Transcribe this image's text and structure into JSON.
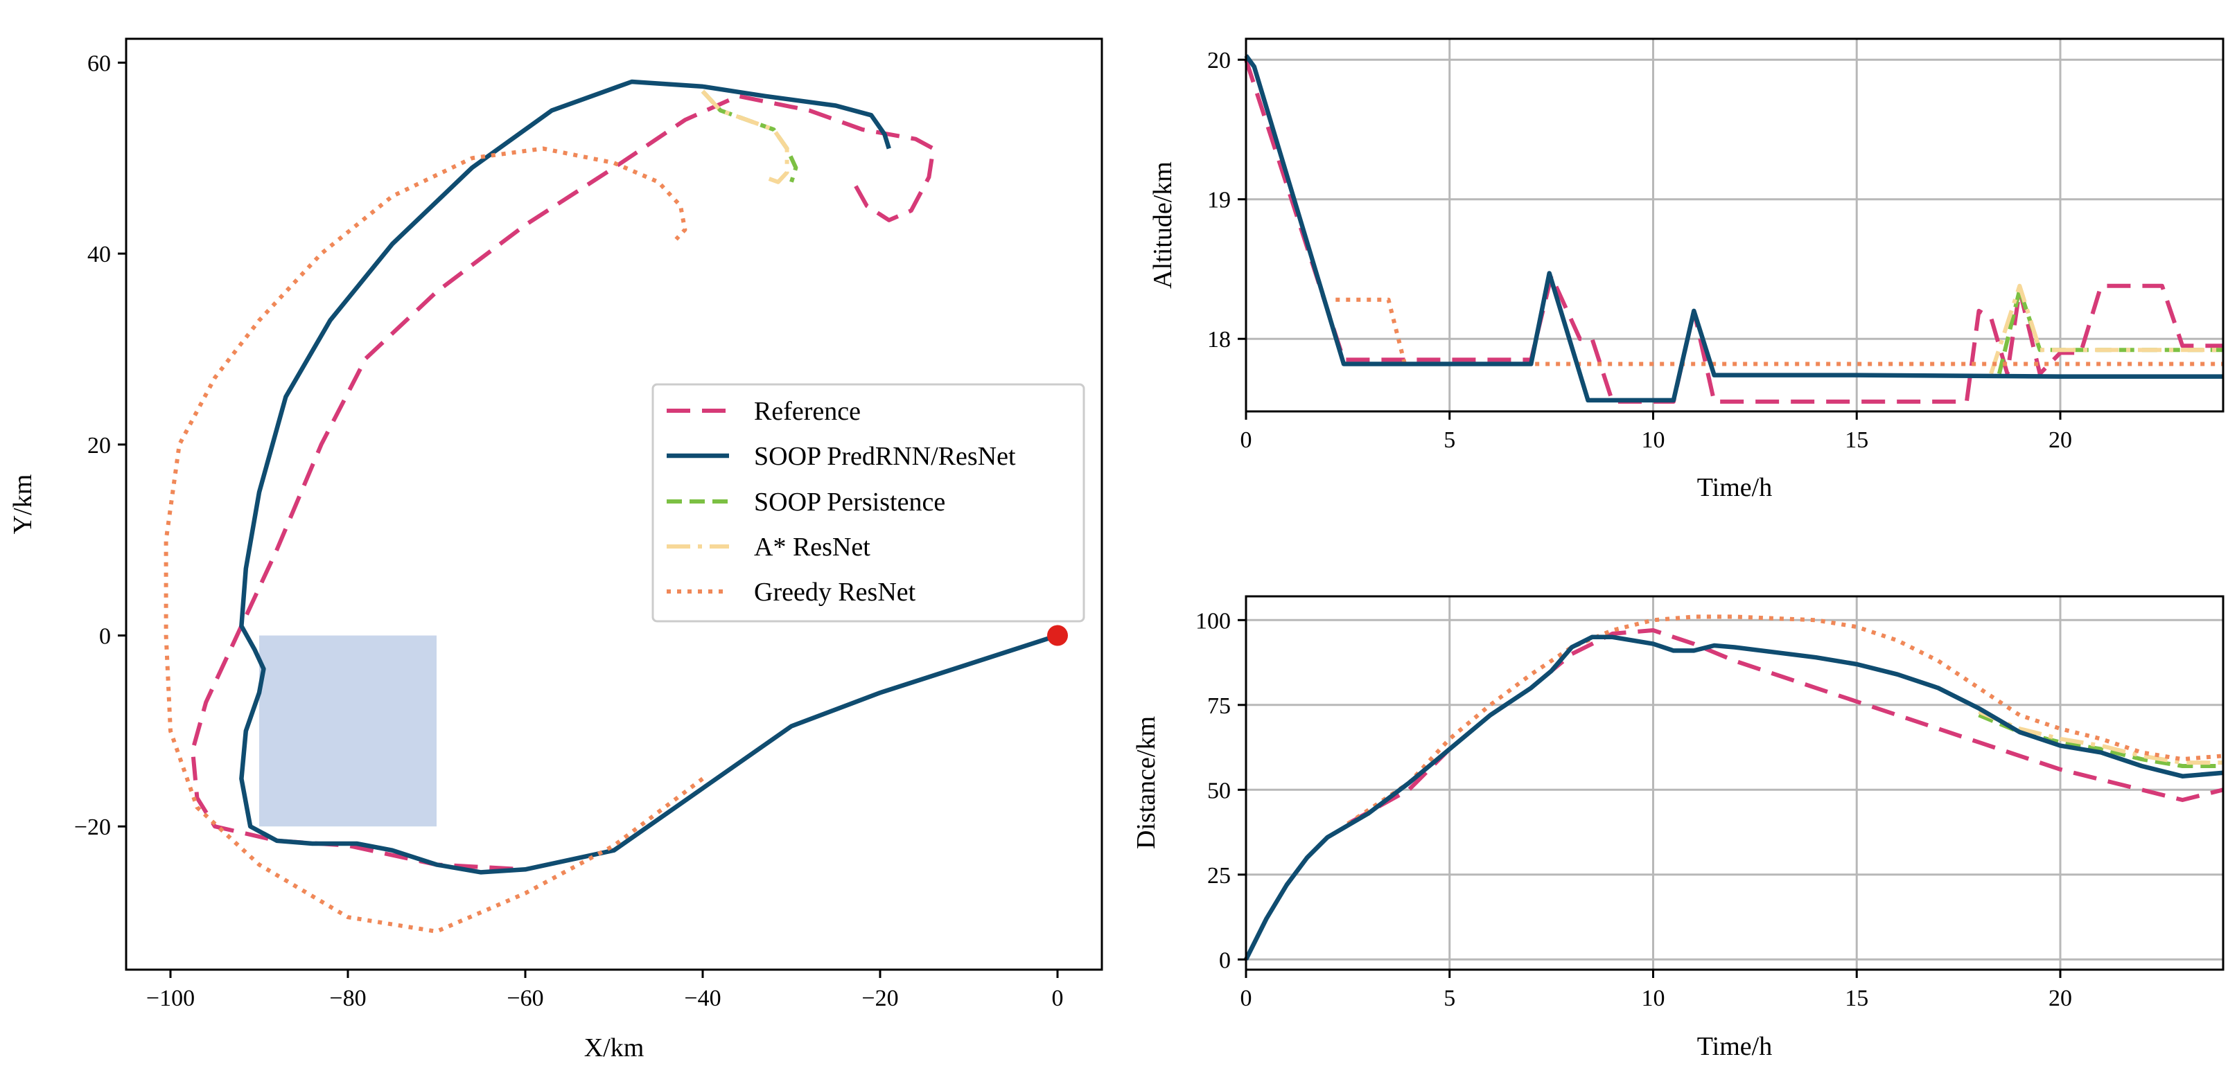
{
  "chart_data": [
    {
      "id": "trajectory",
      "type": "line",
      "title": "",
      "xlabel": "X/km",
      "ylabel": "Y/km",
      "xlim": [
        -105,
        5
      ],
      "ylim": [
        -35,
        62.5
      ],
      "xticks": [
        -100,
        -80,
        -60,
        -40,
        -20,
        0
      ],
      "yticks": [
        -20,
        0,
        20,
        40,
        60
      ],
      "legend": {
        "placement": "center-right",
        "entries": [
          {
            "label": "Reference",
            "series": "reference"
          },
          {
            "label": "SOOP PredRNN/ResNet",
            "series": "soop_predrnn"
          },
          {
            "label": "SOOP Persistence",
            "series": "soop_persistence"
          },
          {
            "label": "A* ResNet",
            "series": "astar"
          },
          {
            "label": "Greedy ResNet",
            "series": "greedy"
          }
        ]
      },
      "region": {
        "x": [
          -90,
          -70
        ],
        "y": [
          -20,
          0
        ],
        "color": "#c9d6eb"
      },
      "start_point": {
        "x": 0,
        "y": 0,
        "color": "#e0201b"
      },
      "series": [
        {
          "key": "reference",
          "name": "Reference",
          "points": [
            [
              0,
              0
            ],
            [
              -10,
              -3
            ],
            [
              -20,
              -6
            ],
            [
              -30,
              -9.5
            ],
            [
              -40,
              -16
            ],
            [
              -50,
              -22.5
            ],
            [
              -60,
              -24.5
            ],
            [
              -70,
              -24
            ],
            [
              -80,
              -22
            ],
            [
              -88,
              -21.5
            ],
            [
              -95,
              -20
            ],
            [
              -97,
              -17
            ],
            [
              -97.5,
              -12
            ],
            [
              -96,
              -7
            ],
            [
              -93,
              -1
            ],
            [
              -88,
              9
            ],
            [
              -83,
              20
            ],
            [
              -78,
              29
            ],
            [
              -70,
              36
            ],
            [
              -60,
              43
            ],
            [
              -50,
              49
            ],
            [
              -42,
              54
            ],
            [
              -36,
              56.5
            ],
            [
              -28,
              55
            ],
            [
              -22,
              53
            ],
            [
              -16,
              52
            ],
            [
              -14,
              51
            ],
            [
              -14.5,
              48
            ],
            [
              -16.5,
              44.5
            ],
            [
              -19,
              43.5
            ],
            [
              -21.5,
              45
            ],
            [
              -23,
              47.5
            ]
          ]
        },
        {
          "key": "soop_predrnn",
          "name": "SOOP PredRNN/ResNet",
          "points": [
            [
              0,
              0
            ],
            [
              -10,
              -3
            ],
            [
              -20,
              -6
            ],
            [
              -30,
              -9.5
            ],
            [
              -40,
              -16
            ],
            [
              -50,
              -22.5
            ],
            [
              -60,
              -24.5
            ],
            [
              -65,
              -24.8
            ],
            [
              -70,
              -24
            ],
            [
              -75,
              -22.5
            ],
            [
              -79,
              -21.8
            ],
            [
              -84,
              -21.8
            ],
            [
              -88,
              -21.5
            ],
            [
              -91,
              -20
            ],
            [
              -92,
              -15
            ],
            [
              -91.5,
              -10
            ],
            [
              -90,
              -6
            ],
            [
              -89.5,
              -3.5
            ],
            [
              -90.5,
              -1.5
            ],
            [
              -92,
              1
            ],
            [
              -91.5,
              7
            ],
            [
              -90,
              15
            ],
            [
              -87,
              25
            ],
            [
              -82,
              33
            ],
            [
              -75,
              41
            ],
            [
              -66,
              49
            ],
            [
              -57,
              55
            ],
            [
              -48,
              58
            ],
            [
              -40,
              57.5
            ],
            [
              -33,
              56.5
            ],
            [
              -25,
              55.5
            ],
            [
              -21,
              54.5
            ],
            [
              -19.5,
              52.5
            ],
            [
              -19,
              51
            ]
          ]
        },
        {
          "key": "soop_persistence",
          "name": "SOOP Persistence",
          "points": [
            [
              -40,
              57
            ],
            [
              -38,
              55
            ],
            [
              -35,
              54
            ],
            [
              -32,
              53
            ],
            [
              -30.5,
              51
            ],
            [
              -29.5,
              49
            ],
            [
              -30,
              47.5
            ]
          ]
        },
        {
          "key": "astar",
          "name": "A* ResNet",
          "points": [
            [
              -40,
              57
            ],
            [
              -38,
              55
            ],
            [
              -35,
              54
            ],
            [
              -32,
              53
            ],
            [
              -30.5,
              51
            ],
            [
              -30.5,
              48.5
            ],
            [
              -31.5,
              47.5
            ],
            [
              -33,
              48
            ]
          ]
        },
        {
          "key": "greedy",
          "name": "Greedy ResNet",
          "points": [
            [
              -40,
              -15
            ],
            [
              -50,
              -22
            ],
            [
              -60,
              -27
            ],
            [
              -70,
              -31
            ],
            [
              -80,
              -29.5
            ],
            [
              -90,
              -24
            ],
            [
              -97,
              -18
            ],
            [
              -100,
              -10
            ],
            [
              -100.5,
              0
            ],
            [
              -100.5,
              10
            ],
            [
              -99,
              20
            ],
            [
              -95,
              27
            ],
            [
              -90,
              33
            ],
            [
              -83,
              40
            ],
            [
              -75,
              46
            ],
            [
              -66,
              50
            ],
            [
              -58,
              51
            ],
            [
              -50,
              49.5
            ],
            [
              -45,
              47.5
            ],
            [
              -42.5,
              45
            ],
            [
              -42,
              42.5
            ],
            [
              -43,
              41.5
            ]
          ]
        }
      ]
    },
    {
      "id": "altitude",
      "type": "line",
      "title": "",
      "xlabel": "Time/h",
      "ylabel": "Altitude/km",
      "xlim": [
        0,
        24
      ],
      "ylim": [
        17.48,
        20.15
      ],
      "xticks": [
        0,
        5,
        10,
        15,
        20
      ],
      "yticks": [
        18,
        19,
        20
      ],
      "grid": true,
      "series": [
        {
          "key": "reference",
          "name": "Reference",
          "points": [
            [
              0,
              20
            ],
            [
              2.4,
              17.85
            ],
            [
              7,
              17.85
            ],
            [
              7.5,
              18.45
            ],
            [
              8.2,
              18.0
            ],
            [
              8.5,
              18.0
            ],
            [
              9,
              17.55
            ],
            [
              10.5,
              17.55
            ],
            [
              11,
              18.2
            ],
            [
              11.5,
              17.55
            ],
            [
              17.7,
              17.55
            ],
            [
              18,
              18.2
            ],
            [
              18.3,
              18.15
            ],
            [
              18.7,
              17.75
            ],
            [
              19,
              18.35
            ],
            [
              19.5,
              17.75
            ],
            [
              20,
              17.9
            ],
            [
              20.5,
              17.9
            ],
            [
              21,
              18.38
            ],
            [
              22.5,
              18.38
            ],
            [
              23,
              17.95
            ],
            [
              24,
              17.95
            ]
          ]
        },
        {
          "key": "soop_persistence",
          "name": "SOOP Persistence",
          "points": [
            [
              18.5,
              17.75
            ],
            [
              19,
              18.35
            ],
            [
              19.5,
              17.92
            ],
            [
              24,
              17.92
            ]
          ]
        },
        {
          "key": "astar",
          "name": "A* ResNet",
          "points": [
            [
              18.3,
              17.75
            ],
            [
              19,
              18.38
            ],
            [
              19.5,
              17.92
            ],
            [
              24,
              17.92
            ]
          ]
        },
        {
          "key": "greedy",
          "name": "Greedy ResNet",
          "points": [
            [
              2.2,
              18.28
            ],
            [
              3.5,
              18.28
            ],
            [
              3.9,
              17.82
            ],
            [
              24,
              17.82
            ]
          ]
        },
        {
          "key": "soop_predrnn",
          "name": "SOOP PredRNN/ResNet",
          "points": [
            [
              0,
              20.03
            ],
            [
              0.2,
              19.95
            ],
            [
              2.4,
              17.82
            ],
            [
              7,
              17.82
            ],
            [
              7.45,
              18.47
            ],
            [
              8.4,
              17.56
            ],
            [
              10.5,
              17.56
            ],
            [
              11,
              18.2
            ],
            [
              11.5,
              17.74
            ],
            [
              15,
              17.74
            ],
            [
              20,
              17.73
            ],
            [
              24,
              17.73
            ]
          ]
        }
      ]
    },
    {
      "id": "distance",
      "type": "line",
      "title": "",
      "xlabel": "Time/h",
      "ylabel": "Distance/km",
      "xlim": [
        0,
        24
      ],
      "ylim": [
        -3,
        107
      ],
      "xticks": [
        0,
        5,
        10,
        15,
        20
      ],
      "yticks": [
        0,
        25,
        50,
        75,
        100
      ],
      "grid": true,
      "series": [
        {
          "key": "reference",
          "name": "Reference",
          "points": [
            [
              2.5,
              40
            ],
            [
              4,
              50
            ],
            [
              5,
              62
            ],
            [
              6,
              72
            ],
            [
              7,
              80
            ],
            [
              8,
              90
            ],
            [
              9,
              96
            ],
            [
              10,
              97
            ],
            [
              11,
              93
            ],
            [
              12,
              88
            ],
            [
              14,
              80
            ],
            [
              16,
              72
            ],
            [
              18,
              64
            ],
            [
              20,
              56
            ],
            [
              22,
              50
            ],
            [
              23,
              47
            ],
            [
              24,
              50
            ]
          ]
        },
        {
          "key": "soop_persistence",
          "name": "SOOP Persistence",
          "points": [
            [
              18,
              72
            ],
            [
              19,
              67
            ],
            [
              20,
              64
            ],
            [
              21,
              62
            ],
            [
              22,
              59
            ],
            [
              23,
              57
            ],
            [
              24,
              57
            ]
          ]
        },
        {
          "key": "astar",
          "name": "A* ResNet",
          "points": [
            [
              18,
              73
            ],
            [
              19,
              68
            ],
            [
              20,
              65
            ],
            [
              21,
              63
            ],
            [
              22,
              60
            ],
            [
              23,
              58
            ],
            [
              24,
              58
            ]
          ]
        },
        {
          "key": "greedy",
          "name": "Greedy ResNet",
          "points": [
            [
              2.5,
              40
            ],
            [
              4,
              52
            ],
            [
              5,
              65
            ],
            [
              6,
              75
            ],
            [
              7,
              84
            ],
            [
              8,
              92
            ],
            [
              9,
              97
            ],
            [
              10,
              100
            ],
            [
              11,
              101
            ],
            [
              12,
              101
            ],
            [
              14,
              100
            ],
            [
              15,
              98
            ],
            [
              16,
              94
            ],
            [
              17,
              88
            ],
            [
              18,
              80
            ],
            [
              19,
              72
            ],
            [
              20,
              68
            ],
            [
              21,
              65
            ],
            [
              22,
              61
            ],
            [
              23,
              59
            ],
            [
              24,
              60
            ]
          ]
        },
        {
          "key": "soop_predrnn",
          "name": "SOOP PredRNN/ResNet",
          "points": [
            [
              0,
              0
            ],
            [
              0.5,
              12
            ],
            [
              1,
              22
            ],
            [
              1.5,
              30
            ],
            [
              2,
              36
            ],
            [
              3,
              43
            ],
            [
              4,
              52
            ],
            [
              5,
              62
            ],
            [
              6,
              72
            ],
            [
              7,
              80
            ],
            [
              7.5,
              85
            ],
            [
              8,
              92
            ],
            [
              8.5,
              95
            ],
            [
              9,
              95
            ],
            [
              10,
              93
            ],
            [
              10.5,
              91
            ],
            [
              11,
              91
            ],
            [
              11.5,
              92.5
            ],
            [
              12,
              92
            ],
            [
              14,
              89
            ],
            [
              15,
              87
            ],
            [
              16,
              84
            ],
            [
              17,
              80
            ],
            [
              18,
              74
            ],
            [
              19,
              67
            ],
            [
              20,
              63
            ],
            [
              21,
              61
            ],
            [
              22,
              57
            ],
            [
              23,
              54
            ],
            [
              24,
              55
            ]
          ]
        }
      ]
    }
  ],
  "styles": {
    "reference": {
      "color": "#d63a77",
      "dash": "34,17",
      "width": 6
    },
    "soop_predrnn": {
      "color": "#0f4c70",
      "dash": "",
      "width": 6.5
    },
    "soop_persistence": {
      "color": "#7cc043",
      "dash": "22,11",
      "width": 6
    },
    "astar": {
      "color": "#f7d898",
      "dash": "34,11,6,11",
      "width": 6
    },
    "greedy": {
      "color": "#f08858",
      "dash": "6,9",
      "width": 6
    }
  }
}
